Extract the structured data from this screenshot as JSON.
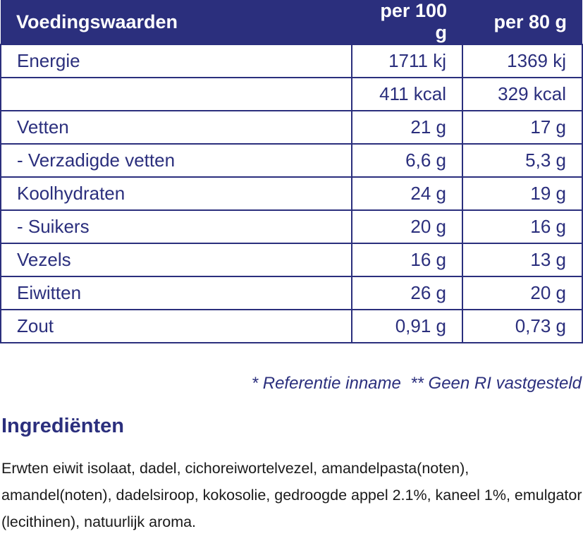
{
  "table": {
    "header": [
      "Voedingswaarden",
      "per 100 g",
      "per 80 g"
    ],
    "rows": [
      [
        "Energie",
        "1711 kj",
        "1369 kj"
      ],
      [
        null,
        "411 kcal",
        "329 kcal"
      ],
      [
        "Vetten",
        "21 g",
        "17 g"
      ],
      [
        "- Verzadigde vetten",
        "6,6 g",
        "5,3 g"
      ],
      [
        "Koolhydraten",
        "24 g",
        "19 g"
      ],
      [
        "- Suikers",
        "20 g",
        "16 g"
      ],
      [
        "Vezels",
        "16 g",
        "13 g"
      ],
      [
        "Eiwitten",
        "26 g",
        "20 g"
      ],
      [
        "Zout",
        "0,91 g",
        "0,73 g"
      ]
    ]
  },
  "footnote": "* Referentie inname  ** Geen RI vastgesteld",
  "ingredients": {
    "title": "Ingrediënten",
    "text": "Erwten eiwit isolaat, dadel, cichoreiwortelvezel, amandelpasta(noten), amandel(noten), dadelsiroop, kokosolie, gedroogde appel 2.1%, kaneel 1%, emulgator (lecithinen), natuurlijk aroma."
  }
}
